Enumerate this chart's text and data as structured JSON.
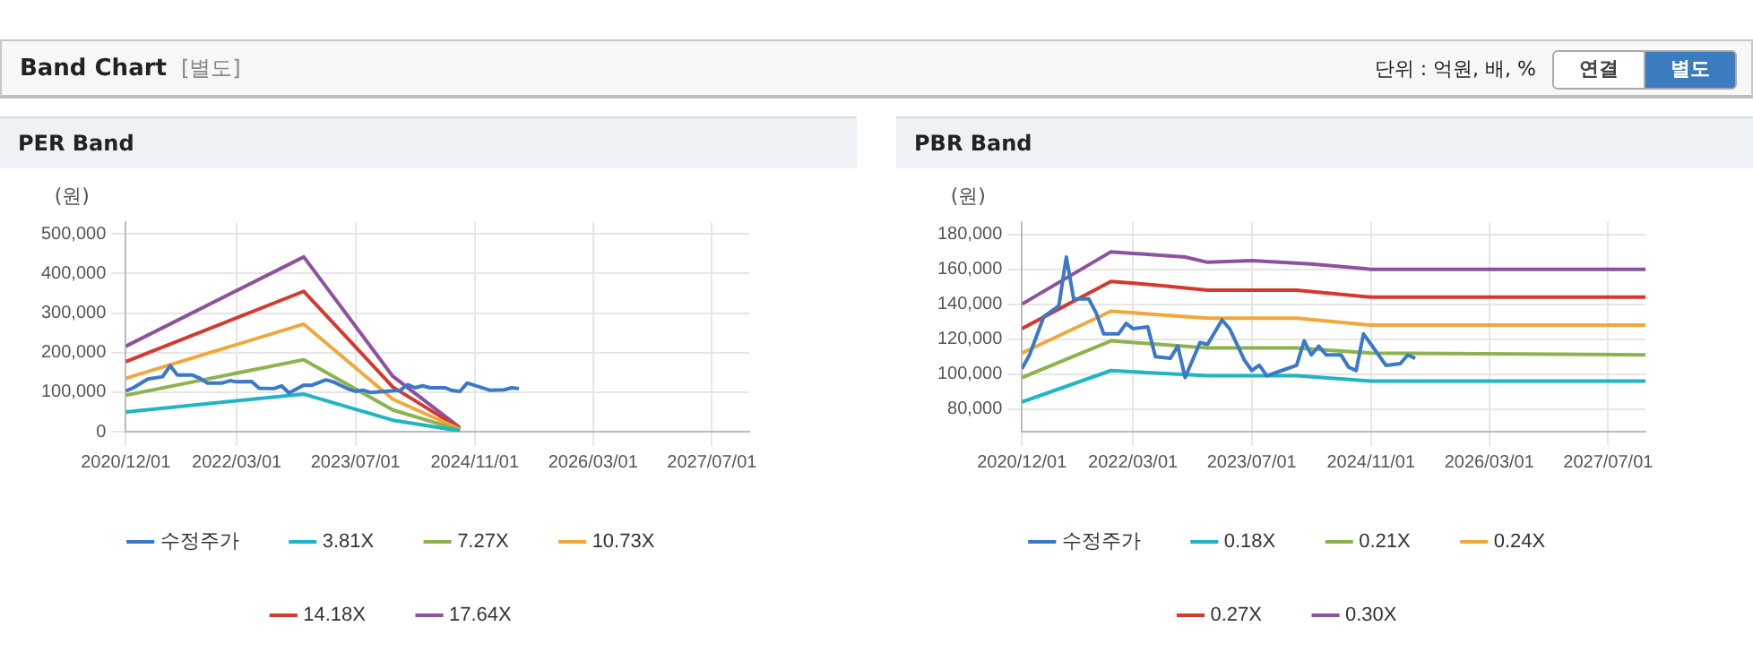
{
  "chart_data": [
    {
      "type": "other",
      "title": "Band Chart",
      "annotations": [
        "[별도]",
        "단위 : 억원, 배, %",
        "연결",
        "별도"
      ]
    },
    {
      "type": "line",
      "title": "PER Band",
      "ylabel": "(원)",
      "legend": "bottom",
      "grid": true,
      "xlim": [
        "2020-12-01",
        "2027-12-01"
      ],
      "xticks": [
        {
          "value": "2020-12-01",
          "label": "2020/12/01"
        },
        {
          "value": "2022-03-01",
          "label": "2022/03/01"
        },
        {
          "value": "2023-07-01",
          "label": "2023/07/01"
        },
        {
          "value": "2024-11-01",
          "label": "2024/11/01"
        },
        {
          "value": "2026-03-01",
          "label": "2026/03/01"
        },
        {
          "value": "2027-07-01",
          "label": "2027/07/01"
        }
      ],
      "ylim": [
        0,
        530000
      ],
      "yticks": [
        0,
        {
          "value": 100000,
          "label": "100,000"
        },
        {
          "value": 200000,
          "label": "200,000"
        },
        {
          "value": 300000,
          "label": "300,000"
        },
        {
          "value": 400000,
          "label": "400,000"
        },
        {
          "value": 500000,
          "label": "500,000"
        }
      ],
      "series": [
        {
          "name": "수정주가",
          "color": "#3a78c8",
          "x": [
            "2020-12",
            "2021-01",
            "2021-03",
            "2021-05",
            "2021-06",
            "2021-07",
            "2021-09",
            "2021-10",
            "2021-11",
            "2022-01",
            "2022-02",
            "2022-03",
            "2022-05",
            "2022-06",
            "2022-08",
            "2022-09",
            "2022-10",
            "2022-12",
            "2023-01",
            "2023-03",
            "2023-04",
            "2023-06",
            "2023-07",
            "2023-08",
            "2023-09",
            "2023-11",
            "2024-01",
            "2024-02",
            "2024-03",
            "2024-04",
            "2024-05",
            "2024-07",
            "2024-08",
            "2024-09",
            "2024-10",
            "2024-11",
            "2025-01",
            "2025-03",
            "2025-04",
            "2025-05"
          ],
          "values": [
            103000,
            111000,
            133000,
            139000,
            167000,
            143000,
            143000,
            135000,
            123000,
            123000,
            129000,
            126000,
            127000,
            110000,
            109000,
            116000,
            98000,
            118000,
            117000,
            131000,
            126000,
            108000,
            102000,
            105000,
            99000,
            102000,
            105000,
            119000,
            111000,
            116000,
            111000,
            111000,
            104000,
            102000,
            123000,
            117000,
            105000,
            106000,
            111000,
            109000
          ]
        },
        {
          "name": "3.81X",
          "color": "#1fb5c4",
          "x": [
            "2020-12",
            "2022-12",
            "2023-12",
            "2024-09"
          ],
          "values": [
            50000,
            95000,
            29000,
            2000
          ]
        },
        {
          "name": "7.27X",
          "color": "#8db34e",
          "x": [
            "2020-12",
            "2022-12",
            "2023-12",
            "2024-09"
          ],
          "values": [
            92000,
            182000,
            55000,
            4000
          ]
        },
        {
          "name": "10.73X",
          "color": "#f0a83c",
          "x": [
            "2020-12",
            "2022-12",
            "2023-12",
            "2024-09"
          ],
          "values": [
            135000,
            272000,
            82000,
            6000
          ]
        },
        {
          "name": "14.18X",
          "color": "#d23a2e",
          "x": [
            "2020-12",
            "2022-12",
            "2023-12",
            "2024-09"
          ],
          "values": [
            177000,
            355000,
            113000,
            8000
          ]
        },
        {
          "name": "17.64X",
          "color": "#8e50a0",
          "x": [
            "2020-12",
            "2022-12",
            "2023-12",
            "2024-09"
          ],
          "values": [
            216000,
            442000,
            140000,
            10000
          ]
        }
      ]
    },
    {
      "type": "line",
      "title": "PBR Band",
      "ylabel": "(원)",
      "legend": "bottom",
      "grid": true,
      "xlim": [
        "2020-12-01",
        "2027-12-01"
      ],
      "xticks": [
        {
          "value": "2020-12-01",
          "label": "2020/12/01"
        },
        {
          "value": "2022-03-01",
          "label": "2022/03/01"
        },
        {
          "value": "2023-07-01",
          "label": "2023/07/01"
        },
        {
          "value": "2024-11-01",
          "label": "2024/11/01"
        },
        {
          "value": "2026-03-01",
          "label": "2026/03/01"
        },
        {
          "value": "2027-07-01",
          "label": "2027/07/01"
        }
      ],
      "ylim": [
        67000,
        187000
      ],
      "yticks": [
        {
          "value": 80000,
          "label": "80,000"
        },
        {
          "value": 100000,
          "label": "100,000"
        },
        {
          "value": 120000,
          "label": "120,000"
        },
        {
          "value": 140000,
          "label": "140,000"
        },
        {
          "value": 160000,
          "label": "160,000"
        },
        {
          "value": 180000,
          "label": "180,000"
        }
      ],
      "series": [
        {
          "name": "수정주가",
          "color": "#3a78c8",
          "x": [
            "2020-12",
            "2021-01",
            "2021-03",
            "2021-05",
            "2021-06",
            "2021-07",
            "2021-09",
            "2021-10",
            "2021-11",
            "2022-01",
            "2022-02",
            "2022-03",
            "2022-05",
            "2022-06",
            "2022-08",
            "2022-09",
            "2022-10",
            "2022-12",
            "2023-01",
            "2023-03",
            "2023-04",
            "2023-06",
            "2023-07",
            "2023-08",
            "2023-09",
            "2023-11",
            "2024-01",
            "2024-02",
            "2024-03",
            "2024-04",
            "2024-05",
            "2024-07",
            "2024-08",
            "2024-09",
            "2024-10",
            "2024-11",
            "2025-01",
            "2025-03",
            "2025-04",
            "2025-05"
          ],
          "values": [
            103000,
            111000,
            133000,
            139000,
            167000,
            143000,
            143000,
            135000,
            123000,
            123000,
            129000,
            126000,
            127000,
            110000,
            109000,
            116000,
            98000,
            118000,
            117000,
            131000,
            126000,
            108000,
            102000,
            105000,
            99000,
            102000,
            105000,
            119000,
            111000,
            116000,
            111000,
            111000,
            104000,
            102000,
            123000,
            117000,
            105000,
            106000,
            111000,
            109000
          ]
        },
        {
          "name": "0.18X",
          "color": "#1fb5c4",
          "x": [
            "2020-12",
            "2021-12",
            "2023-01",
            "2024-01",
            "2024-11",
            "2027-12"
          ],
          "values": [
            84000,
            102000,
            99000,
            99000,
            96000,
            96000
          ]
        },
        {
          "name": "0.21X",
          "color": "#8db34e",
          "x": [
            "2020-12",
            "2021-12",
            "2023-01",
            "2024-01",
            "2024-11",
            "2027-12"
          ],
          "values": [
            98000,
            119000,
            115000,
            115000,
            112000,
            111000
          ]
        },
        {
          "name": "0.24X",
          "color": "#f0a83c",
          "x": [
            "2020-12",
            "2021-12",
            "2023-01",
            "2024-01",
            "2024-11",
            "2027-12"
          ],
          "values": [
            112000,
            136000,
            132000,
            132000,
            128000,
            128000
          ]
        },
        {
          "name": "0.27X",
          "color": "#d23a2e",
          "x": [
            "2020-12",
            "2021-12",
            "2022-06",
            "2023-01",
            "2024-01",
            "2024-11",
            "2027-12"
          ],
          "values": [
            126000,
            153000,
            151000,
            148000,
            148000,
            144000,
            144000
          ]
        },
        {
          "name": "0.30X",
          "color": "#8e50a0",
          "x": [
            "2020-12",
            "2021-12",
            "2022-10",
            "2023-01",
            "2023-07",
            "2024-03",
            "2024-11",
            "2027-12"
          ],
          "values": [
            140000,
            170000,
            167000,
            164000,
            165000,
            163000,
            160000,
            160000
          ]
        }
      ]
    }
  ]
}
